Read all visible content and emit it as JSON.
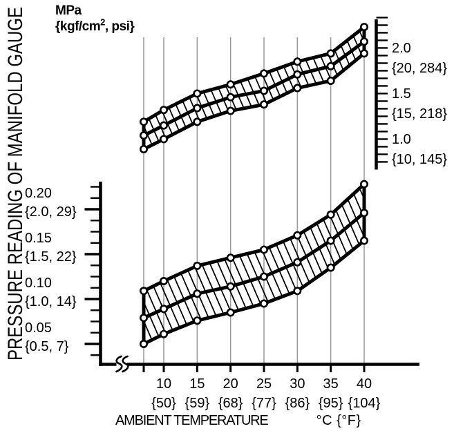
{
  "y_axis_title": "PRESSURE READING OF MANIFOLD GAUGE",
  "pressure_unit": {
    "line1": "MPa",
    "line2_pre": "{kgf/cm",
    "line2_sup": "2",
    "line2_post": ", psi}"
  },
  "colors": {
    "line": "#000000",
    "grid": "#999999",
    "marker_fill": "#ffffff",
    "background": "#ffffff"
  },
  "chart_data": {
    "type": "area",
    "title": "",
    "x": {
      "axis_label": "AMBIENT TEMPERATURE",
      "axis_unit": "°C {°F}",
      "values_c": [
        7,
        10,
        15,
        20,
        25,
        30,
        35,
        40
      ],
      "tick_labels": [
        {
          "c": 10,
          "line1": "10",
          "line2": "{50}"
        },
        {
          "c": 15,
          "line1": "15",
          "line2": "{59}"
        },
        {
          "c": 20,
          "line1": "20",
          "line2": "{68}"
        },
        {
          "c": 25,
          "line1": "25",
          "line2": "{77}"
        },
        {
          "c": 30,
          "line1": "30",
          "line2": "{86}"
        },
        {
          "c": 35,
          "line1": "35",
          "line2": "{95}"
        },
        {
          "c": 40,
          "line1": "40",
          "line2": "{104}"
        }
      ]
    },
    "y_high_side": {
      "unit": "MPa {kgf/cm2, psi}",
      "axis_range_mpa": [
        0.83,
        2.42
      ],
      "tick_labels": [
        {
          "value": 2.0,
          "line1": "2.0",
          "line2": "{20, 284}"
        },
        {
          "value": 1.5,
          "line1": "1.5",
          "line2": "{15, 218}"
        },
        {
          "value": 1.0,
          "line1": "1.0",
          "line2": "{10, 145}"
        }
      ]
    },
    "y_low_side": {
      "unit": "MPa {kgf/cm2, psi}",
      "axis_range_mpa": [
        0.0375,
        0.225
      ],
      "tick_labels": [
        {
          "value": 0.2,
          "line1": "0.20",
          "line2": "{2.0, 29}"
        },
        {
          "value": 0.15,
          "line1": "0.15",
          "line2": "{1.5, 22}"
        },
        {
          "value": 0.1,
          "line1": "0.10",
          "line2": "{1.0, 14}"
        },
        {
          "value": 0.05,
          "line1": "0.05",
          "line2": "{0.5, 7}"
        }
      ]
    },
    "series": [
      {
        "name": "high-side-upper",
        "band": "high",
        "mpa": [
          1.27,
          1.4,
          1.58,
          1.68,
          1.8,
          1.93,
          2.02,
          2.31
        ]
      },
      {
        "name": "high-side-middle",
        "band": "high",
        "mpa": [
          1.12,
          1.23,
          1.42,
          1.54,
          1.61,
          1.79,
          1.88,
          2.15
        ]
      },
      {
        "name": "high-side-lower",
        "band": "high",
        "mpa": [
          0.97,
          1.08,
          1.27,
          1.39,
          1.46,
          1.64,
          1.72,
          2.02
        ]
      },
      {
        "name": "low-side-upper",
        "band": "low",
        "mpa": [
          0.109,
          0.12,
          0.137,
          0.146,
          0.155,
          0.171,
          0.194,
          0.228
        ]
      },
      {
        "name": "low-side-middle",
        "band": "low",
        "mpa": [
          0.079,
          0.089,
          0.106,
          0.114,
          0.125,
          0.141,
          0.165,
          0.196
        ]
      },
      {
        "name": "low-side-lower",
        "band": "low",
        "mpa": [
          0.05,
          0.061,
          0.076,
          0.085,
          0.095,
          0.109,
          0.135,
          0.165
        ]
      }
    ]
  }
}
